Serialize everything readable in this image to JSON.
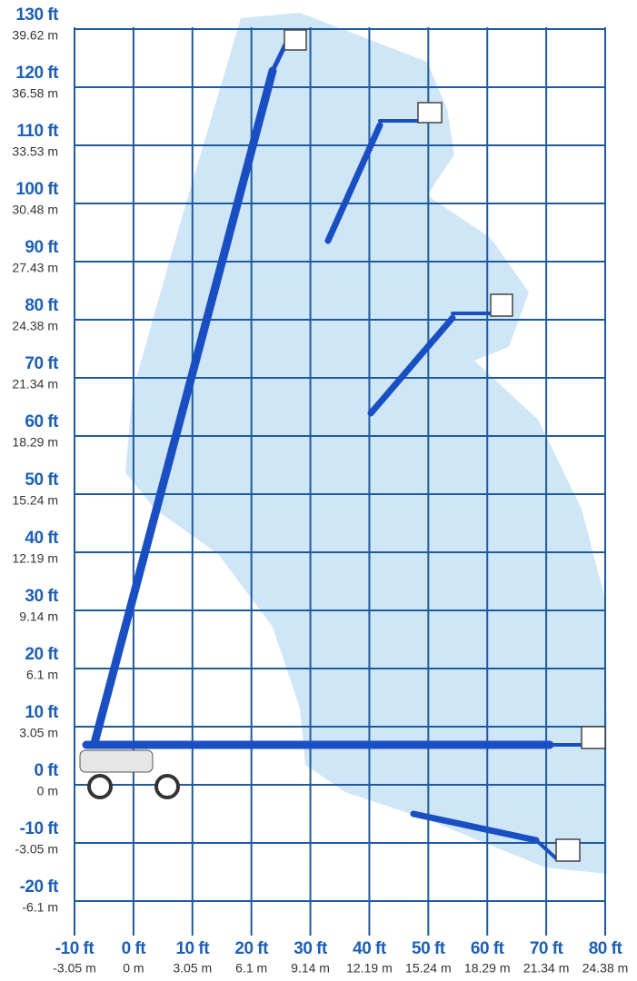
{
  "chart_data": {
    "type": "reach-diagram",
    "xlim": [
      -10,
      80
    ],
    "ylim": [
      -20,
      130
    ],
    "grid": true,
    "xticks": [
      {
        "value": -10,
        "label": "-10 ft"
      },
      {
        "value": 0,
        "label": "0 ft"
      },
      {
        "value": 10,
        "label": "10 ft"
      },
      {
        "value": 20,
        "label": "20 ft"
      },
      {
        "value": 30,
        "label": "30 ft"
      },
      {
        "value": 40,
        "label": "40 ft"
      },
      {
        "value": 50,
        "label": "50 ft"
      },
      {
        "value": 60,
        "label": "60 ft"
      },
      {
        "value": 70,
        "label": "70 ft"
      },
      {
        "value": 80,
        "label": "80 ft"
      }
    ],
    "xticks_metric": [
      {
        "value": -10,
        "label": "-3.05 m"
      },
      {
        "value": 0,
        "label": "0 m"
      },
      {
        "value": 10,
        "label": "3.05 m"
      },
      {
        "value": 20,
        "label": "6.1 m"
      },
      {
        "value": 30,
        "label": "9.14 m"
      },
      {
        "value": 40,
        "label": "12.19 m"
      },
      {
        "value": 50,
        "label": "15.24 m"
      },
      {
        "value": 60,
        "label": "18.29 m"
      },
      {
        "value": 70,
        "label": "21.34 m"
      },
      {
        "value": 80,
        "label": "24.38 m"
      }
    ],
    "yticks": [
      {
        "value": 130,
        "label": "130 ft"
      },
      {
        "value": 120,
        "label": "120 ft"
      },
      {
        "value": 110,
        "label": "110 ft"
      },
      {
        "value": 100,
        "label": "100 ft"
      },
      {
        "value": 90,
        "label": "90 ft"
      },
      {
        "value": 80,
        "label": "80 ft"
      },
      {
        "value": 70,
        "label": "70 ft"
      },
      {
        "value": 60,
        "label": "60 ft"
      },
      {
        "value": 50,
        "label": "50 ft"
      },
      {
        "value": 40,
        "label": "40 ft"
      },
      {
        "value": 30,
        "label": "30 ft"
      },
      {
        "value": 20,
        "label": "20 ft"
      },
      {
        "value": 10,
        "label": "10 ft"
      },
      {
        "value": 0,
        "label": "0 ft"
      },
      {
        "value": -10,
        "label": "-10 ft"
      },
      {
        "value": -20,
        "label": "-20 ft"
      }
    ],
    "yticks_metric": [
      {
        "value": 130,
        "label": "39.62 m"
      },
      {
        "value": 120,
        "label": "36.58 m"
      },
      {
        "value": 110,
        "label": "33.53 m"
      },
      {
        "value": 100,
        "label": "30.48 m"
      },
      {
        "value": 90,
        "label": "27.43 m"
      },
      {
        "value": 80,
        "label": "24.38 m"
      },
      {
        "value": 70,
        "label": "21.34 m"
      },
      {
        "value": 60,
        "label": "18.29 m"
      },
      {
        "value": 50,
        "label": "15.24 m"
      },
      {
        "value": 40,
        "label": "12.19 m"
      },
      {
        "value": 30,
        "label": "9.14 m"
      },
      {
        "value": 20,
        "label": "6.1 m"
      },
      {
        "value": 10,
        "label": "3.05 m"
      },
      {
        "value": 0,
        "label": "0 m"
      },
      {
        "value": -10,
        "label": "-3.05 m"
      },
      {
        "value": -20,
        "label": "-6.1 m"
      }
    ]
  }
}
